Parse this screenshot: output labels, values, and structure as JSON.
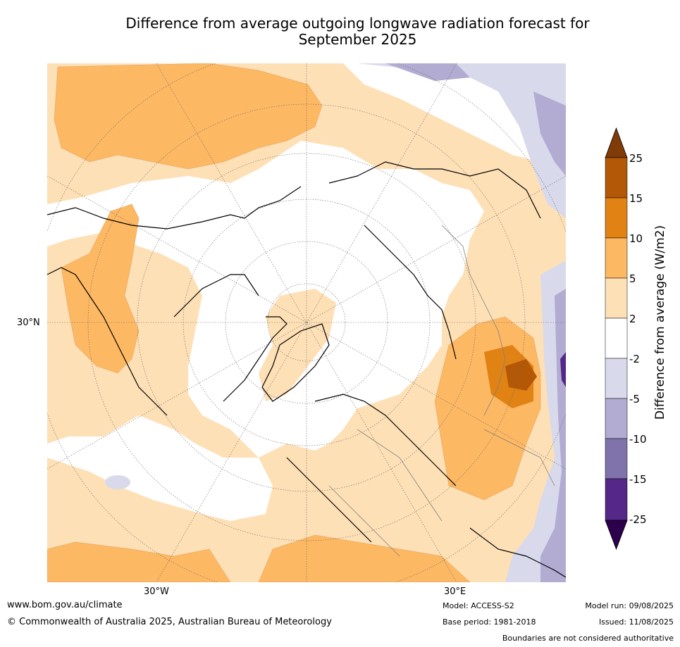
{
  "title_line1": "Difference from average outgoing longwave radiation forecast for",
  "title_line2": "September 2025",
  "map": {
    "projection": "north polar stereographic",
    "lat_label": "30°N",
    "lon_labels": [
      "30°W",
      "30°E"
    ],
    "note": ""
  },
  "colorbar": {
    "title": "Difference from average (W/m2)",
    "ticks": [
      "25",
      "15",
      "10",
      "5",
      "2",
      "-2",
      "-5",
      "-10",
      "-15",
      "-25"
    ],
    "colors": {
      "gt25": "#7f3b08",
      "15_25": "#b35806",
      "10_15": "#e08214",
      "5_10": "#fdb863",
      "2_5": "#fee0b6",
      "m2_2": "#ffffff",
      "m5_m2": "#d8daeb",
      "m10_m5": "#b2abd2",
      "m15_m10": "#8073ac",
      "m25_m15": "#542788",
      "lt_m25": "#2d004b"
    }
  },
  "footer": {
    "url": "www.bom.gov.au/climate",
    "copyright": "© Commonwealth of Australia 2025, Australian Bureau of Meteorology",
    "model": "Model: ACCESS-S2",
    "base_period": "Base period: 1981-2018",
    "model_run": "Model run: 09/08/2025",
    "issued": "Issued: 11/08/2025",
    "disclaimer": "Boundaries are not considered authoritative"
  }
}
